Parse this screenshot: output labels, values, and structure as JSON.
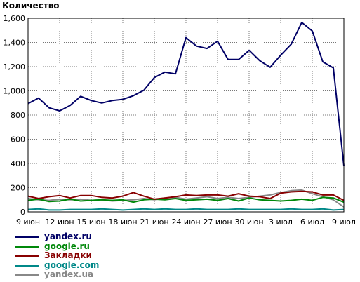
{
  "chart_data": {
    "type": "line",
    "title": "Количество",
    "xlabel": "",
    "ylabel": "",
    "ylim": [
      0,
      1600
    ],
    "yticks": [
      0,
      200,
      400,
      600,
      800,
      1000,
      1200,
      1400,
      1600
    ],
    "ytick_labels": [
      "0",
      "200",
      "400",
      "600",
      "800",
      "1,000",
      "1,200",
      "1,400",
      "1,600"
    ],
    "x": [
      "9 июн",
      "10 июн",
      "11 июн",
      "12 июн",
      "13 июн",
      "14 июн",
      "15 июн",
      "16 июн",
      "17 июн",
      "18 июн",
      "19 июн",
      "20 июн",
      "21 июн",
      "22 июн",
      "23 июн",
      "24 июн",
      "25 июн",
      "26 июн",
      "27 июн",
      "28 июн",
      "29 июн",
      "30 июн",
      "1 июл",
      "2 июл",
      "3 июл",
      "4 июл",
      "5 июл",
      "6 июл",
      "7 июл",
      "8 июл",
      "9 июл"
    ],
    "xtick_labels": [
      "9 июн",
      "12 июн",
      "15 июн",
      "18 июн",
      "21 июн",
      "24 июн",
      "27 июн",
      "30 июн",
      "3 июл",
      "6 июл",
      "9 июл"
    ],
    "grid": true,
    "legend_position": "bottom-left",
    "series": [
      {
        "name": "yandex.ru",
        "color": "#000066",
        "values": [
          895,
          940,
          860,
          835,
          880,
          955,
          920,
          900,
          920,
          930,
          960,
          1005,
          1110,
          1155,
          1140,
          1440,
          1370,
          1350,
          1410,
          1260,
          1260,
          1335,
          1250,
          1195,
          1295,
          1385,
          1565,
          1495,
          1240,
          1190,
          380
        ]
      },
      {
        "name": "google.ru",
        "color": "#00880a",
        "values": [
          95,
          105,
          85,
          90,
          105,
          90,
          95,
          100,
          95,
          100,
          80,
          100,
          105,
          100,
          110,
          95,
          100,
          105,
          95,
          110,
          90,
          115,
          100,
          95,
          90,
          95,
          105,
          95,
          120,
          115,
          80
        ]
      },
      {
        "name": "Закладки",
        "color": "#880000",
        "values": [
          130,
          110,
          125,
          135,
          115,
          135,
          135,
          120,
          115,
          130,
          160,
          130,
          105,
          115,
          125,
          140,
          135,
          140,
          140,
          130,
          150,
          130,
          125,
          110,
          155,
          165,
          170,
          165,
          140,
          140,
          95
        ]
      },
      {
        "name": "google.com",
        "color": "#008888",
        "values": [
          20,
          25,
          15,
          15,
          20,
          20,
          20,
          25,
          20,
          15,
          20,
          25,
          20,
          25,
          20,
          20,
          25,
          20,
          20,
          20,
          25,
          20,
          20,
          20,
          20,
          25,
          20,
          20,
          25,
          15,
          20
        ]
      },
      {
        "name": "yandex.ua",
        "color": "#888888",
        "values": [
          110,
          100,
          95,
          105,
          100,
          105,
          95,
          100,
          90,
          95,
          100,
          110,
          100,
          115,
          120,
          105,
          115,
          125,
          110,
          120,
          110,
          120,
          130,
          140,
          160,
          175,
          180,
          150,
          125,
          100,
          40
        ]
      }
    ]
  }
}
